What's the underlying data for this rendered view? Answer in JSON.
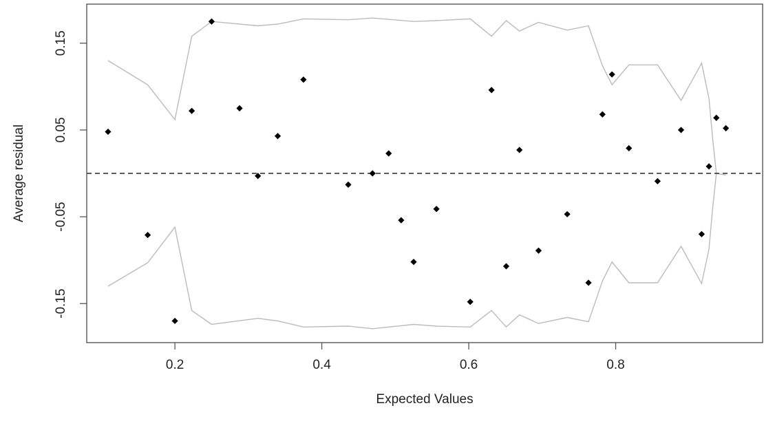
{
  "chart_data": {
    "type": "scatter",
    "title": "",
    "xlabel": "Expected Values",
    "ylabel": "Average residual",
    "xlim": [
      0.08,
      1.0
    ],
    "ylim": [
      -0.195,
      0.195
    ],
    "x_ticks": [
      0.2,
      0.4,
      0.6,
      0.8
    ],
    "x_tick_labels": [
      "0.2",
      "0.4",
      "0.6",
      "0.8"
    ],
    "y_ticks": [
      -0.15,
      -0.05,
      0.05,
      0.15
    ],
    "y_tick_labels": [
      "-0.15",
      "-0.05",
      "0.05",
      "0.15"
    ],
    "grid": false,
    "reference_line": {
      "y": 0,
      "style": "dashed",
      "color": "#444444"
    },
    "points_color": "#000000",
    "band_color": "#bbbbbb",
    "points": [
      {
        "x": 0.109,
        "y": 0.048
      },
      {
        "x": 0.163,
        "y": -0.071
      },
      {
        "x": 0.2,
        "y": -0.17
      },
      {
        "x": 0.223,
        "y": 0.072
      },
      {
        "x": 0.25,
        "y": 0.175
      },
      {
        "x": 0.288,
        "y": 0.075
      },
      {
        "x": 0.313,
        "y": -0.003
      },
      {
        "x": 0.34,
        "y": 0.043
      },
      {
        "x": 0.375,
        "y": 0.108
      },
      {
        "x": 0.436,
        "y": -0.013
      },
      {
        "x": 0.469,
        "y": 0.0
      },
      {
        "x": 0.491,
        "y": 0.023
      },
      {
        "x": 0.508,
        "y": -0.054
      },
      {
        "x": 0.525,
        "y": -0.102
      },
      {
        "x": 0.556,
        "y": -0.041
      },
      {
        "x": 0.602,
        "y": -0.148
      },
      {
        "x": 0.631,
        "y": 0.096
      },
      {
        "x": 0.651,
        "y": -0.107
      },
      {
        "x": 0.669,
        "y": 0.027
      },
      {
        "x": 0.695,
        "y": -0.089
      },
      {
        "x": 0.734,
        "y": -0.047
      },
      {
        "x": 0.763,
        "y": -0.126
      },
      {
        "x": 0.782,
        "y": 0.068
      },
      {
        "x": 0.795,
        "y": 0.114
      },
      {
        "x": 0.818,
        "y": 0.029
      },
      {
        "x": 0.857,
        "y": -0.009
      },
      {
        "x": 0.889,
        "y": 0.05
      },
      {
        "x": 0.917,
        "y": -0.07
      },
      {
        "x": 0.927,
        "y": 0.008
      },
      {
        "x": 0.937,
        "y": 0.064
      },
      {
        "x": 0.95,
        "y": 0.052
      }
    ],
    "upper_band": [
      {
        "x": 0.109,
        "y": 0.13
      },
      {
        "x": 0.163,
        "y": 0.102
      },
      {
        "x": 0.2,
        "y": 0.062
      },
      {
        "x": 0.223,
        "y": 0.158
      },
      {
        "x": 0.25,
        "y": 0.175
      },
      {
        "x": 0.313,
        "y": 0.17
      },
      {
        "x": 0.34,
        "y": 0.172
      },
      {
        "x": 0.375,
        "y": 0.178
      },
      {
        "x": 0.436,
        "y": 0.177
      },
      {
        "x": 0.469,
        "y": 0.179
      },
      {
        "x": 0.525,
        "y": 0.175
      },
      {
        "x": 0.556,
        "y": 0.176
      },
      {
        "x": 0.602,
        "y": 0.178
      },
      {
        "x": 0.631,
        "y": 0.158
      },
      {
        "x": 0.651,
        "y": 0.176
      },
      {
        "x": 0.669,
        "y": 0.164
      },
      {
        "x": 0.695,
        "y": 0.174
      },
      {
        "x": 0.734,
        "y": 0.165
      },
      {
        "x": 0.763,
        "y": 0.17
      },
      {
        "x": 0.782,
        "y": 0.124
      },
      {
        "x": 0.795,
        "y": 0.102
      },
      {
        "x": 0.818,
        "y": 0.125
      },
      {
        "x": 0.857,
        "y": 0.125
      },
      {
        "x": 0.889,
        "y": 0.084
      },
      {
        "x": 0.917,
        "y": 0.127
      },
      {
        "x": 0.927,
        "y": 0.086
      },
      {
        "x": 0.932,
        "y": 0.04
      },
      {
        "x": 0.937,
        "y": 0.0
      },
      {
        "x": 0.95,
        "y": -0.002
      }
    ],
    "lower_band": [
      {
        "x": 0.109,
        "y": -0.13
      },
      {
        "x": 0.163,
        "y": -0.103
      },
      {
        "x": 0.2,
        "y": -0.062
      },
      {
        "x": 0.223,
        "y": -0.158
      },
      {
        "x": 0.25,
        "y": -0.174
      },
      {
        "x": 0.313,
        "y": -0.167
      },
      {
        "x": 0.34,
        "y": -0.17
      },
      {
        "x": 0.375,
        "y": -0.177
      },
      {
        "x": 0.436,
        "y": -0.176
      },
      {
        "x": 0.469,
        "y": -0.179
      },
      {
        "x": 0.525,
        "y": -0.174
      },
      {
        "x": 0.556,
        "y": -0.176
      },
      {
        "x": 0.602,
        "y": -0.177
      },
      {
        "x": 0.631,
        "y": -0.158
      },
      {
        "x": 0.651,
        "y": -0.177
      },
      {
        "x": 0.669,
        "y": -0.163
      },
      {
        "x": 0.695,
        "y": -0.173
      },
      {
        "x": 0.734,
        "y": -0.166
      },
      {
        "x": 0.763,
        "y": -0.171
      },
      {
        "x": 0.782,
        "y": -0.124
      },
      {
        "x": 0.795,
        "y": -0.102
      },
      {
        "x": 0.818,
        "y": -0.126
      },
      {
        "x": 0.857,
        "y": -0.126
      },
      {
        "x": 0.889,
        "y": -0.084
      },
      {
        "x": 0.917,
        "y": -0.127
      },
      {
        "x": 0.927,
        "y": -0.087
      },
      {
        "x": 0.932,
        "y": -0.04
      },
      {
        "x": 0.937,
        "y": 0.0
      }
    ]
  }
}
